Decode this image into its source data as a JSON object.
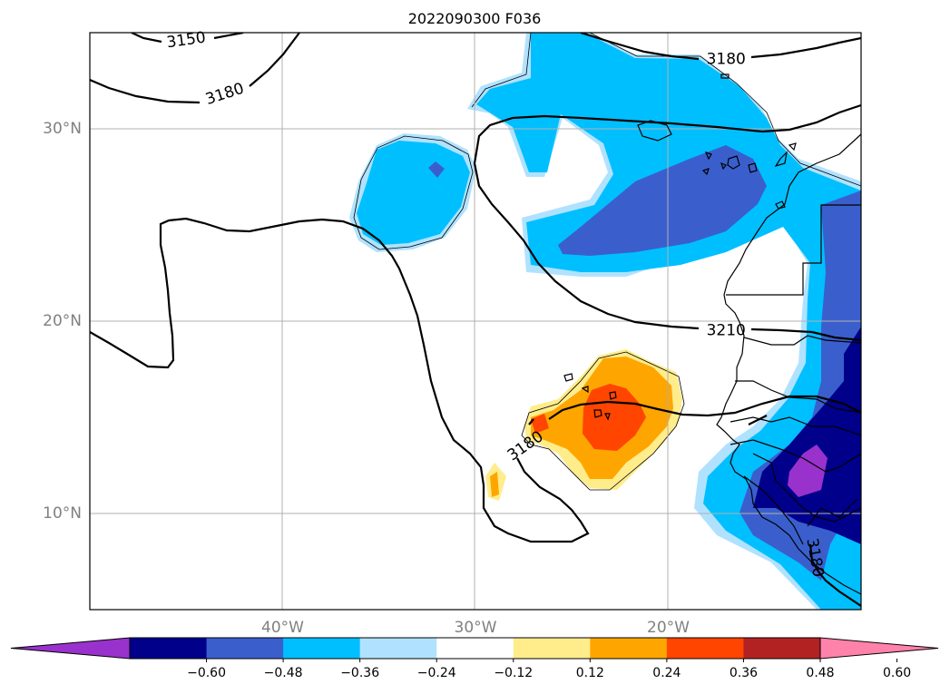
{
  "title": "2022090300 F036",
  "lat_ticks": [
    {
      "label": "30°N",
      "lat": 30
    },
    {
      "label": "20°N",
      "lat": 20
    },
    {
      "label": "10°N",
      "lat": 10
    }
  ],
  "lon_ticks": [
    {
      "label": "40°W",
      "lon": -40
    },
    {
      "label": "30°W",
      "lon": -30
    },
    {
      "label": "20°W",
      "lon": -20
    }
  ],
  "contour_labels": [
    {
      "text": "3150",
      "lon": -45.0,
      "lat": 34.6,
      "rot": -8
    },
    {
      "text": "3180",
      "lon": -43.0,
      "lat": 31.8,
      "rot": -18
    },
    {
      "text": "3180",
      "lon": -17.0,
      "lat": 33.6,
      "rot": 0
    },
    {
      "text": "3210",
      "lon": -17.0,
      "lat": 19.5,
      "rot": 0
    },
    {
      "text": "3180",
      "lon": -27.4,
      "lat": 13.5,
      "rot": -35
    },
    {
      "text": "3180",
      "lon": -12.4,
      "lat": 7.7,
      "rot": 80
    }
  ],
  "colorbar": {
    "ticks": [
      "−0.60",
      "−0.48",
      "−0.36",
      "−0.24",
      "−0.12",
      "0.12",
      "0.24",
      "0.36",
      "0.48",
      "0.60"
    ],
    "colors": [
      "#9932cc",
      "#00008b",
      "#3a5fcd",
      "#00bfff",
      "#b0e2ff",
      "#ffffff",
      "#ffec8b",
      "#ffa500",
      "#ff4500",
      "#b22222",
      "#ff82ab"
    ]
  }
}
